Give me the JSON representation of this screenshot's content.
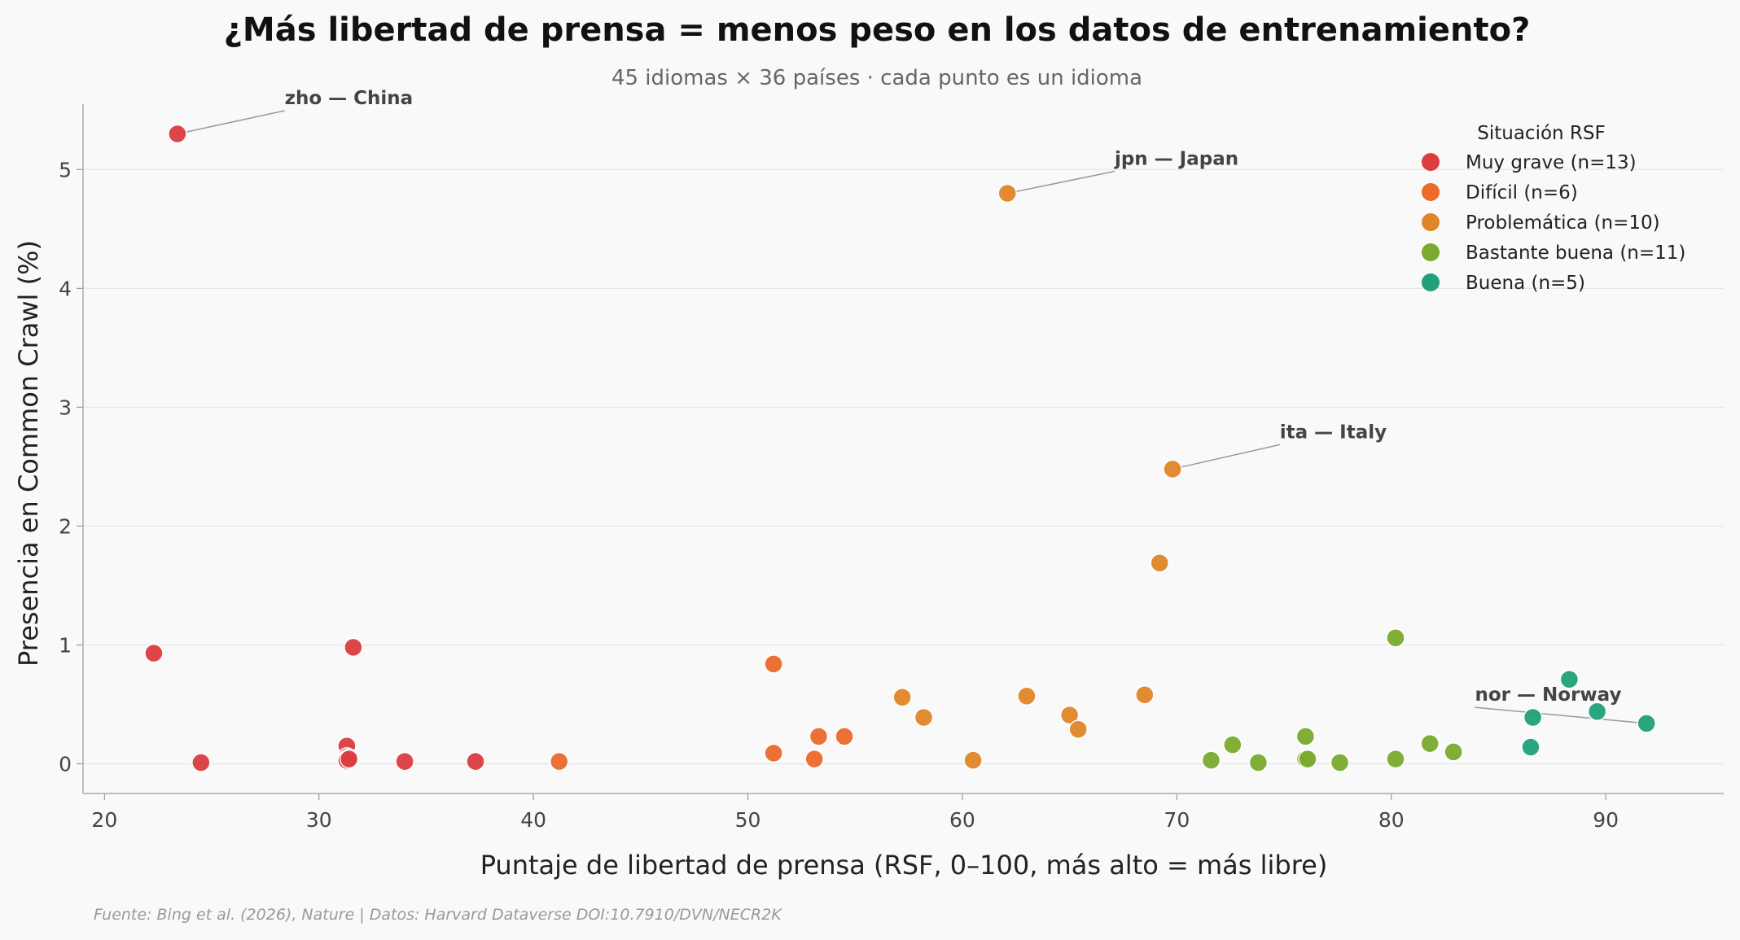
{
  "chart_data": {
    "type": "scatter",
    "title": "¿Más libertad de prensa = menos peso en los datos de entrenamiento?",
    "subtitle": "45 idiomas × 36 países · cada punto es un idioma",
    "xlabel": "Puntaje de libertad de prensa (RSF, 0–100, más alto = más libre)",
    "ylabel": "Presencia en Common Crawl (%)",
    "xlim": [
      19,
      95.5
    ],
    "ylim": [
      -0.25,
      5.55
    ],
    "xticks": [
      20,
      30,
      40,
      50,
      60,
      70,
      80,
      90
    ],
    "yticks": [
      0,
      1,
      2,
      3,
      4,
      5
    ],
    "grid": "horizontal",
    "legend_position": "top-right",
    "legend_title": "Situación RSF",
    "source": "Fuente: Bing et al. (2026), Nature | Datos: Harvard Dataverse DOI:10.7910/DVN/NECR2K",
    "series": [
      {
        "name": "Muy grave (n=13)",
        "color": "#dc3d3f",
        "points": [
          [
            23.4,
            5.3
          ],
          [
            22.3,
            0.93
          ],
          [
            31.6,
            0.98
          ],
          [
            24.5,
            0.01
          ],
          [
            31.3,
            0.15
          ],
          [
            31.3,
            0.06
          ],
          [
            31.3,
            0.04
          ],
          [
            31.3,
            0.02
          ],
          [
            31.4,
            0.05
          ],
          [
            34.0,
            0.02
          ],
          [
            37.3,
            0.02
          ],
          [
            31.3,
            0.03
          ],
          [
            31.4,
            0.04
          ]
        ]
      },
      {
        "name": "Difícil (n=6)",
        "color": "#ec6a2a",
        "points": [
          [
            51.2,
            0.84
          ],
          [
            53.3,
            0.23
          ],
          [
            54.5,
            0.23
          ],
          [
            51.2,
            0.09
          ],
          [
            53.1,
            0.04
          ],
          [
            41.2,
            0.02
          ]
        ]
      },
      {
        "name": "Problemática (n=10)",
        "color": "#e08628",
        "points": [
          [
            62.1,
            4.8
          ],
          [
            69.8,
            2.48
          ],
          [
            69.2,
            1.69
          ],
          [
            57.2,
            0.56
          ],
          [
            63.0,
            0.57
          ],
          [
            68.5,
            0.58
          ],
          [
            58.2,
            0.39
          ],
          [
            65.0,
            0.41
          ],
          [
            65.4,
            0.29
          ],
          [
            60.5,
            0.03
          ]
        ]
      },
      {
        "name": "Bastante buena (n=11)",
        "color": "#7aab2e",
        "points": [
          [
            80.2,
            1.06
          ],
          [
            76.0,
            0.23
          ],
          [
            72.6,
            0.16
          ],
          [
            81.8,
            0.17
          ],
          [
            82.9,
            0.1
          ],
          [
            71.6,
            0.03
          ],
          [
            73.8,
            0.01
          ],
          [
            76.0,
            0.04
          ],
          [
            76.1,
            0.04
          ],
          [
            77.6,
            0.01
          ],
          [
            80.2,
            0.04
          ]
        ]
      },
      {
        "name": "Buena (n=5)",
        "color": "#21a07a",
        "points": [
          [
            88.3,
            0.71
          ],
          [
            89.6,
            0.44
          ],
          [
            86.6,
            0.39
          ],
          [
            91.9,
            0.34
          ],
          [
            86.5,
            0.14
          ]
        ]
      }
    ],
    "annotations": [
      {
        "text": "zho — China",
        "x": 23.4,
        "y": 5.3,
        "tx": 28.4,
        "ty": 5.55,
        "anchor": "start"
      },
      {
        "text": "jpn — Japan",
        "x": 62.1,
        "y": 4.8,
        "tx": 67.1,
        "ty": 5.04,
        "anchor": "start"
      },
      {
        "text": "ita — Italy",
        "x": 69.8,
        "y": 2.48,
        "tx": 74.8,
        "ty": 2.74,
        "anchor": "start"
      },
      {
        "text": "nor — Norway",
        "x": 91.9,
        "y": 0.34,
        "tx": 83.9,
        "ty": 0.53,
        "anchor": "start"
      }
    ]
  }
}
